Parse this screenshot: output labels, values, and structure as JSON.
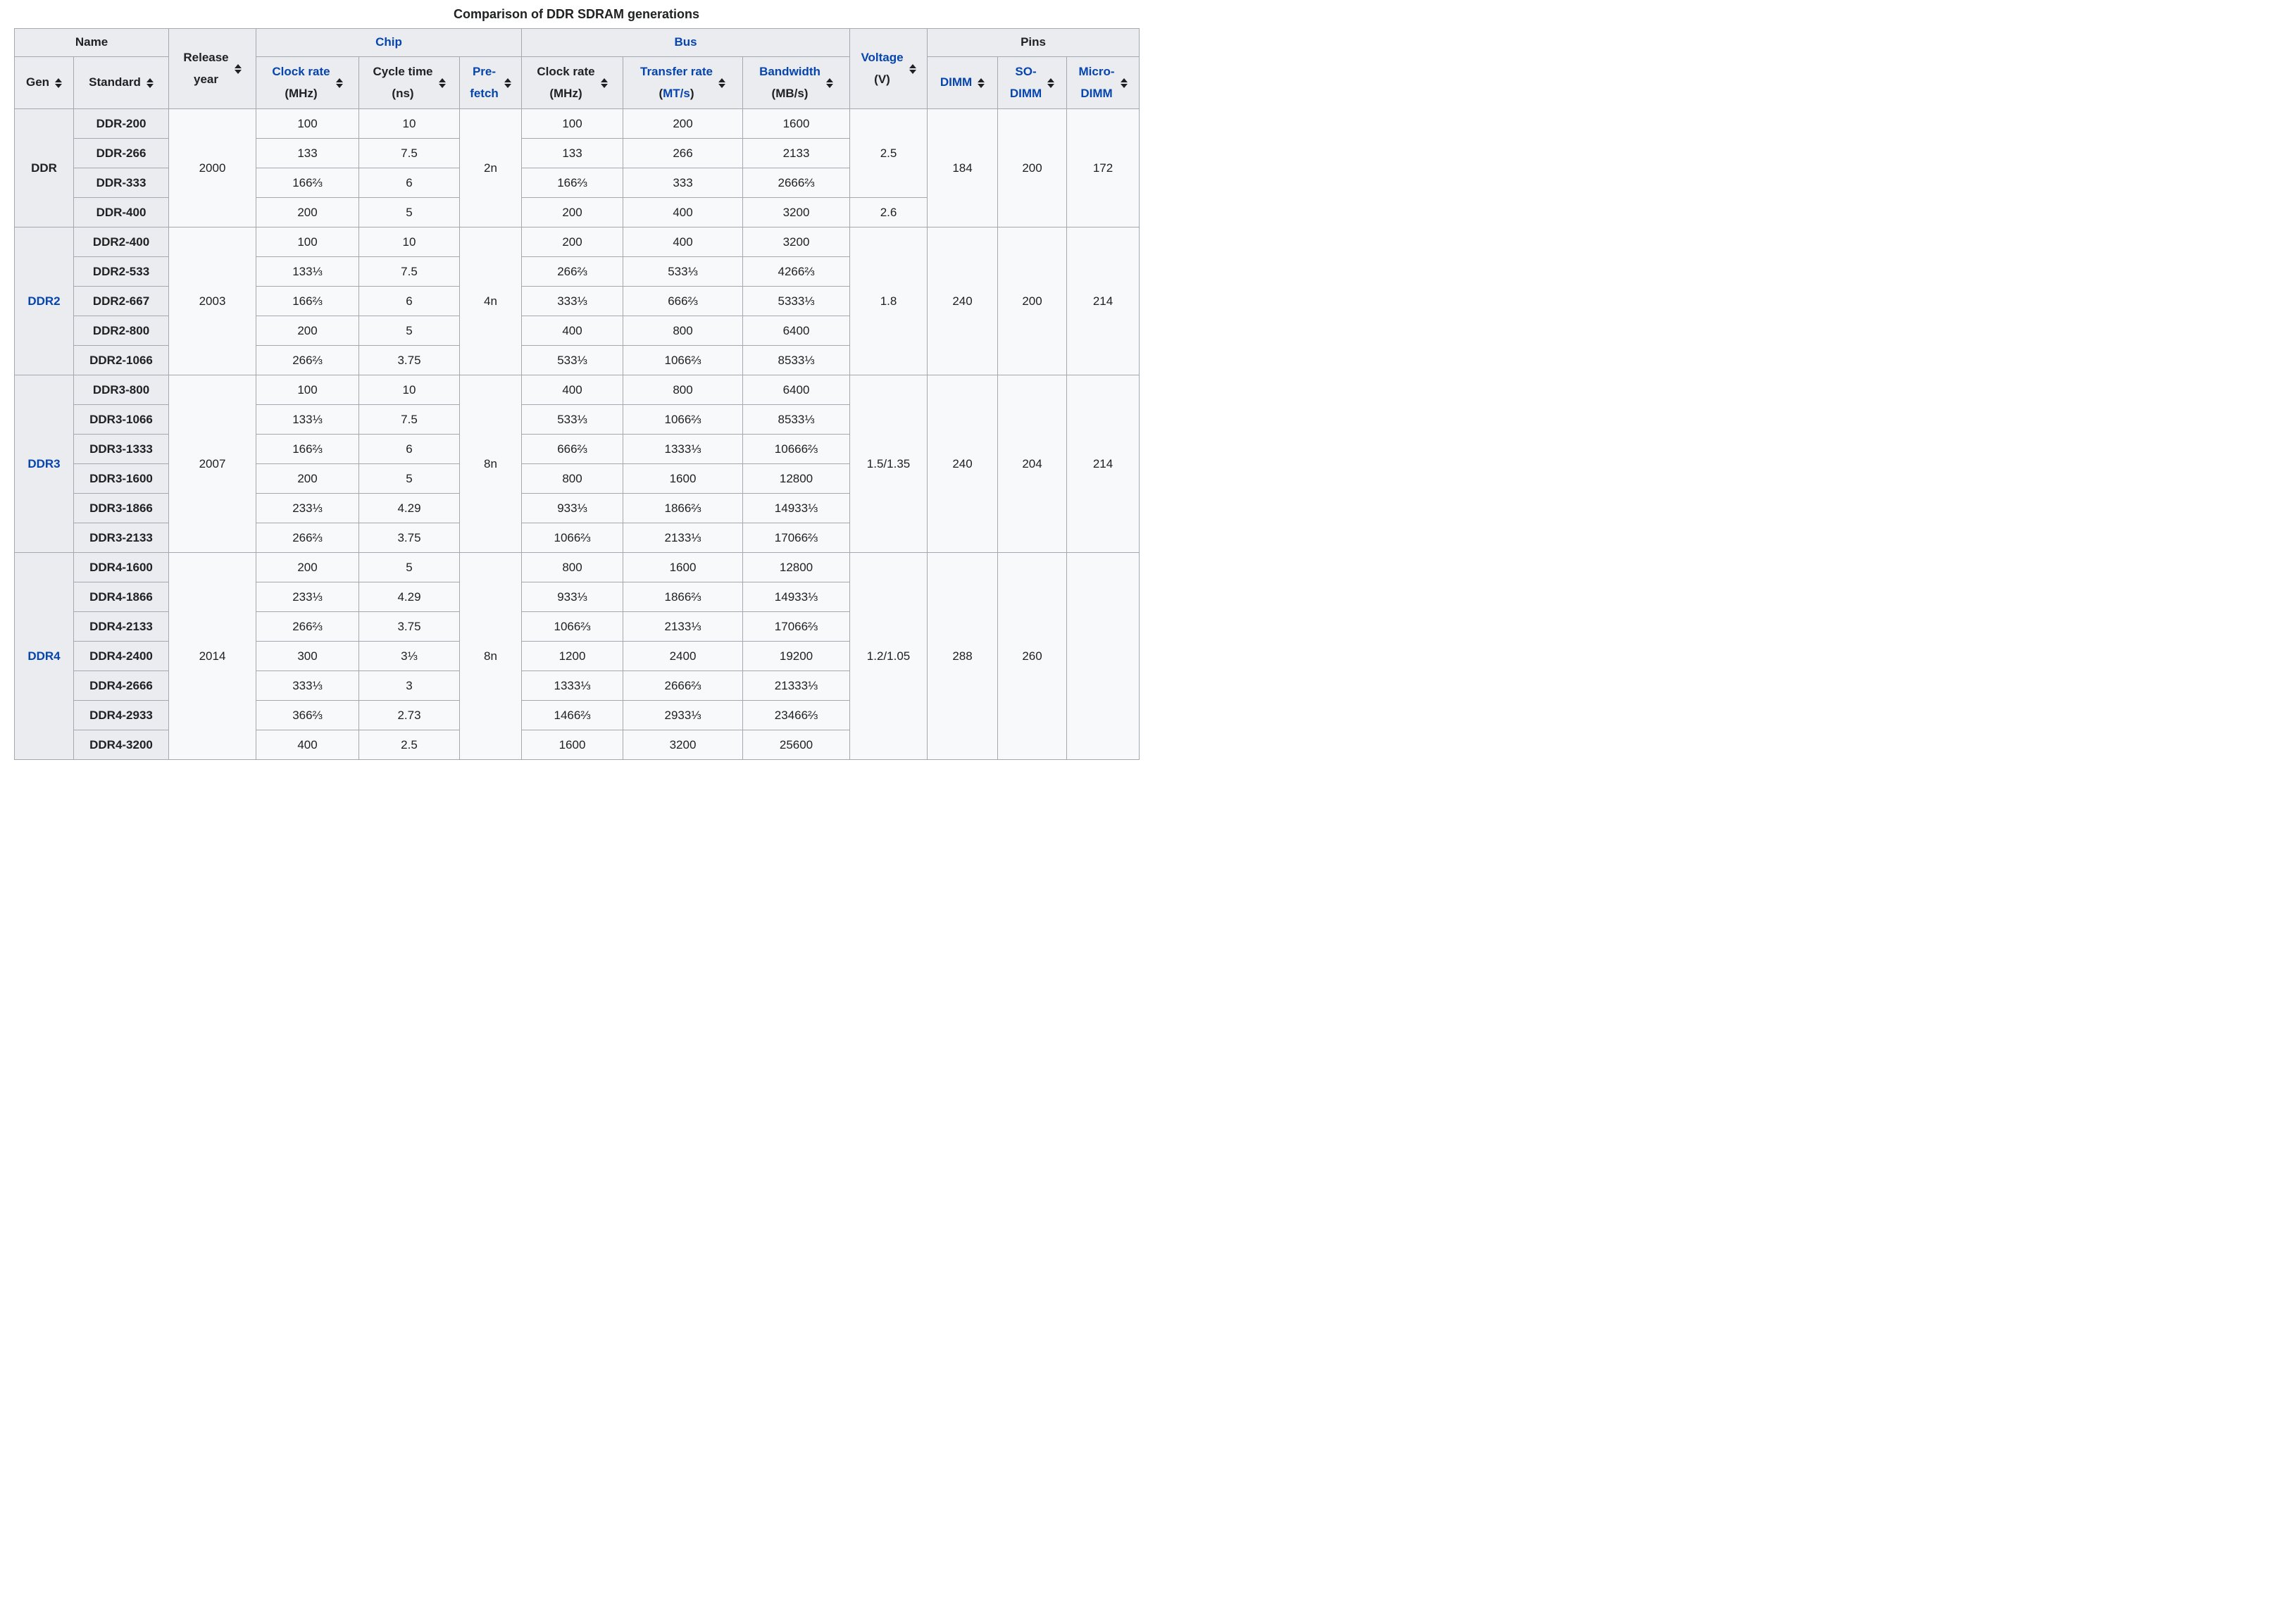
{
  "title": "Comparison of DDR SDRAM generations",
  "colors": {
    "link_blue": "#0645ad",
    "header_bg": "#eaecf0",
    "cell_bg": "#f8f9fa",
    "border": "#a2a9b1",
    "text": "#202122"
  },
  "header": {
    "row1": [
      {
        "id": "name-group",
        "label": "Name",
        "colspan": 2,
        "link": false,
        "sortable": false
      },
      {
        "id": "release-year",
        "rowspan": 2,
        "sortable": true,
        "lines": [
          [
            {
              "t": "Release",
              "link": false
            }
          ],
          [
            {
              "t": "year",
              "link": false
            }
          ]
        ]
      },
      {
        "id": "chip-group",
        "label": "Chip",
        "colspan": 3,
        "link": true,
        "sortable": false
      },
      {
        "id": "bus-group",
        "label": "Bus",
        "colspan": 3,
        "link": true,
        "sortable": false
      },
      {
        "id": "voltage",
        "rowspan": 2,
        "sortable": true,
        "lines": [
          [
            {
              "t": "Voltage",
              "link": true
            }
          ],
          [
            {
              "t": "(V)",
              "link": false
            }
          ]
        ]
      },
      {
        "id": "pins-group",
        "label": "Pins",
        "colspan": 3,
        "link": false,
        "sortable": false
      }
    ],
    "row2": [
      {
        "id": "gen",
        "sortable": true,
        "lines": [
          [
            {
              "t": "Gen",
              "link": false
            }
          ]
        ]
      },
      {
        "id": "standard",
        "sortable": true,
        "lines": [
          [
            {
              "t": "Standard",
              "link": false
            }
          ]
        ]
      },
      {
        "id": "chip-clock-rate",
        "sortable": true,
        "lines": [
          [
            {
              "t": "Clock rate",
              "link": true
            }
          ],
          [
            {
              "t": "(MHz)",
              "link": false
            }
          ]
        ]
      },
      {
        "id": "cycle-time",
        "sortable": true,
        "lines": [
          [
            {
              "t": "Cycle time",
              "link": false
            }
          ],
          [
            {
              "t": "(ns)",
              "link": false
            }
          ]
        ]
      },
      {
        "id": "pre-fetch",
        "sortable": true,
        "lines": [
          [
            {
              "t": "Pre-",
              "link": true
            }
          ],
          [
            {
              "t": "fetch",
              "link": true
            }
          ]
        ]
      },
      {
        "id": "bus-clock-rate",
        "sortable": true,
        "lines": [
          [
            {
              "t": "Clock rate",
              "link": false
            }
          ],
          [
            {
              "t": "(MHz)",
              "link": false
            }
          ]
        ]
      },
      {
        "id": "transfer-rate",
        "sortable": true,
        "lines": [
          [
            {
              "t": "Transfer rate",
              "link": true
            }
          ],
          [
            {
              "t": "(",
              "link": false
            },
            {
              "t": "MT/s",
              "link": true
            },
            {
              "t": ")",
              "link": false
            }
          ]
        ]
      },
      {
        "id": "bandwidth",
        "sortable": true,
        "lines": [
          [
            {
              "t": "Bandwidth",
              "link": true
            }
          ],
          [
            {
              "t": "(MB/s)",
              "link": false
            }
          ]
        ]
      },
      {
        "id": "dimm",
        "sortable": true,
        "lines": [
          [
            {
              "t": "DIMM",
              "link": true
            }
          ]
        ]
      },
      {
        "id": "so-dimm",
        "sortable": true,
        "lines": [
          [
            {
              "t": "SO-",
              "link": true
            }
          ],
          [
            {
              "t": "DIMM",
              "link": true
            }
          ]
        ]
      },
      {
        "id": "micro-dimm",
        "sortable": true,
        "lines": [
          [
            {
              "t": "Micro-",
              "link": true
            }
          ],
          [
            {
              "t": "DIMM",
              "link": true
            }
          ]
        ]
      }
    ]
  },
  "groups": [
    {
      "gen": {
        "label": "DDR",
        "link": false
      },
      "release_year": "2000",
      "prefetch": "2n",
      "voltages": [
        {
          "value": "2.5",
          "rows": 3
        },
        {
          "value": "2.6",
          "rows": 1
        }
      ],
      "pins": {
        "dimm": "184",
        "sodimm": "200",
        "microdimm": "172"
      },
      "rows": [
        {
          "standard": "DDR-200",
          "chip_clock": "100",
          "cycle": "10",
          "bus_clock": "100",
          "transfer": "200",
          "bandwidth": "1600"
        },
        {
          "standard": "DDR-266",
          "chip_clock": "133",
          "cycle": "7.5",
          "bus_clock": "133",
          "transfer": "266",
          "bandwidth": "2133"
        },
        {
          "standard": "DDR-333",
          "chip_clock": "166⅔",
          "cycle": "6",
          "bus_clock": "166⅔",
          "transfer": "333",
          "bandwidth": "2666⅔"
        },
        {
          "standard": "DDR-400",
          "chip_clock": "200",
          "cycle": "5",
          "bus_clock": "200",
          "transfer": "400",
          "bandwidth": "3200"
        }
      ]
    },
    {
      "gen": {
        "label": "DDR2",
        "link": true
      },
      "release_year": "2003",
      "prefetch": "4n",
      "voltages": [
        {
          "value": "1.8",
          "rows": 5
        }
      ],
      "pins": {
        "dimm": "240",
        "sodimm": "200",
        "microdimm": "214"
      },
      "rows": [
        {
          "standard": "DDR2-400",
          "chip_clock": "100",
          "cycle": "10",
          "bus_clock": "200",
          "transfer": "400",
          "bandwidth": "3200"
        },
        {
          "standard": "DDR2-533",
          "chip_clock": "133⅓",
          "cycle": "7.5",
          "bus_clock": "266⅔",
          "transfer": "533⅓",
          "bandwidth": "4266⅔"
        },
        {
          "standard": "DDR2-667",
          "chip_clock": "166⅔",
          "cycle": "6",
          "bus_clock": "333⅓",
          "transfer": "666⅔",
          "bandwidth": "5333⅓"
        },
        {
          "standard": "DDR2-800",
          "chip_clock": "200",
          "cycle": "5",
          "bus_clock": "400",
          "transfer": "800",
          "bandwidth": "6400"
        },
        {
          "standard": "DDR2-1066",
          "chip_clock": "266⅔",
          "cycle": "3.75",
          "bus_clock": "533⅓",
          "transfer": "1066⅔",
          "bandwidth": "8533⅓"
        }
      ]
    },
    {
      "gen": {
        "label": "DDR3",
        "link": true
      },
      "release_year": "2007",
      "prefetch": "8n",
      "voltages": [
        {
          "value": "1.5/1.35",
          "rows": 6
        }
      ],
      "pins": {
        "dimm": "240",
        "sodimm": "204",
        "microdimm": "214"
      },
      "rows": [
        {
          "standard": "DDR3-800",
          "chip_clock": "100",
          "cycle": "10",
          "bus_clock": "400",
          "transfer": "800",
          "bandwidth": "6400"
        },
        {
          "standard": "DDR3-1066",
          "chip_clock": "133⅓",
          "cycle": "7.5",
          "bus_clock": "533⅓",
          "transfer": "1066⅔",
          "bandwidth": "8533⅓"
        },
        {
          "standard": "DDR3-1333",
          "chip_clock": "166⅔",
          "cycle": "6",
          "bus_clock": "666⅔",
          "transfer": "1333⅓",
          "bandwidth": "10666⅔"
        },
        {
          "standard": "DDR3-1600",
          "chip_clock": "200",
          "cycle": "5",
          "bus_clock": "800",
          "transfer": "1600",
          "bandwidth": "12800"
        },
        {
          "standard": "DDR3-1866",
          "chip_clock": "233⅓",
          "cycle": "4.29",
          "bus_clock": "933⅓",
          "transfer": "1866⅔",
          "bandwidth": "14933⅓"
        },
        {
          "standard": "DDR3-2133",
          "chip_clock": "266⅔",
          "cycle": "3.75",
          "bus_clock": "1066⅔",
          "transfer": "2133⅓",
          "bandwidth": "17066⅔"
        }
      ]
    },
    {
      "gen": {
        "label": "DDR4",
        "link": true
      },
      "release_year": "2014",
      "prefetch": "8n",
      "voltages": [
        {
          "value": "1.2/1.05",
          "rows": 7
        }
      ],
      "pins": {
        "dimm": "288",
        "sodimm": "260",
        "microdimm": ""
      },
      "rows": [
        {
          "standard": "DDR4-1600",
          "chip_clock": "200",
          "cycle": "5",
          "bus_clock": "800",
          "transfer": "1600",
          "bandwidth": "12800"
        },
        {
          "standard": "DDR4-1866",
          "chip_clock": "233⅓",
          "cycle": "4.29",
          "bus_clock": "933⅓",
          "transfer": "1866⅔",
          "bandwidth": "14933⅓"
        },
        {
          "standard": "DDR4-2133",
          "chip_clock": "266⅔",
          "cycle": "3.75",
          "bus_clock": "1066⅔",
          "transfer": "2133⅓",
          "bandwidth": "17066⅔"
        },
        {
          "standard": "DDR4-2400",
          "chip_clock": "300",
          "cycle": "3⅓",
          "bus_clock": "1200",
          "transfer": "2400",
          "bandwidth": "19200"
        },
        {
          "standard": "DDR4-2666",
          "chip_clock": "333⅓",
          "cycle": "3",
          "bus_clock": "1333⅓",
          "transfer": "2666⅔",
          "bandwidth": "21333⅓"
        },
        {
          "standard": "DDR4-2933",
          "chip_clock": "366⅔",
          "cycle": "2.73",
          "bus_clock": "1466⅔",
          "transfer": "2933⅓",
          "bandwidth": "23466⅔"
        },
        {
          "standard": "DDR4-3200",
          "chip_clock": "400",
          "cycle": "2.5",
          "bus_clock": "1600",
          "transfer": "3200",
          "bandwidth": "25600"
        }
      ]
    }
  ]
}
